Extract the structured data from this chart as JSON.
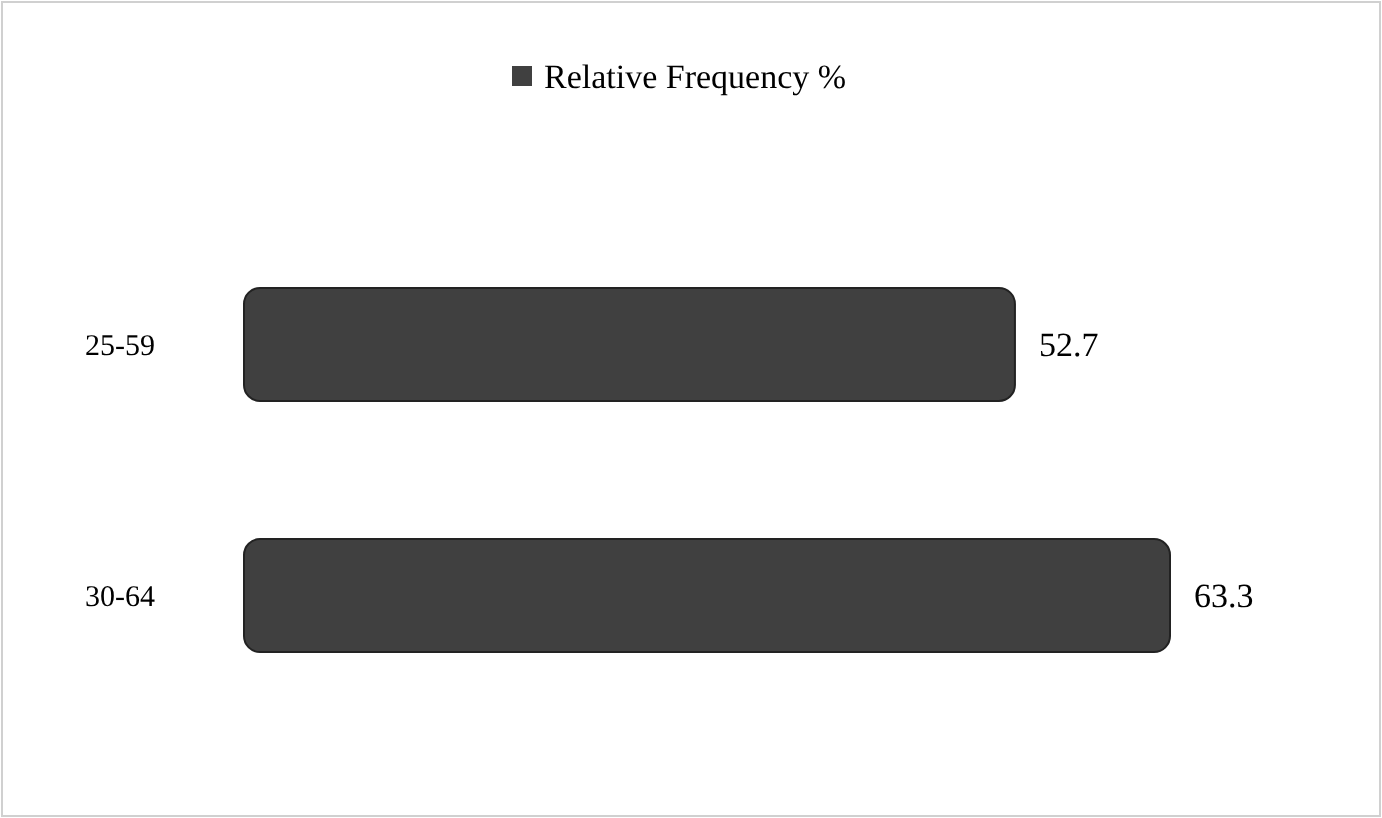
{
  "chart_data": {
    "type": "bar",
    "orientation": "horizontal",
    "categories": [
      "25-59",
      "30-64"
    ],
    "series": [
      {
        "name": "Relative Frequency %",
        "color": "#404040",
        "values": [
          52.7,
          63.3
        ]
      }
    ],
    "data_labels": true,
    "legend": "top"
  }
}
